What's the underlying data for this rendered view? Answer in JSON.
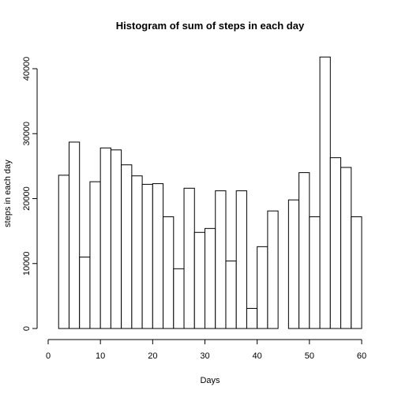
{
  "chart_data": {
    "type": "bar",
    "title": "Histogram of sum of steps in each day",
    "xlabel": "Days",
    "ylabel": "steps in each day",
    "xlim": [
      0,
      60
    ],
    "ylim": [
      0,
      42000
    ],
    "x_ticks": [
      0,
      10,
      20,
      30,
      40,
      50,
      60
    ],
    "y_ticks": [
      0,
      10000,
      20000,
      30000,
      40000
    ],
    "grid": false,
    "bin_width": 2,
    "bins": [
      {
        "x0": 2,
        "x1": 4,
        "value": 23600
      },
      {
        "x0": 4,
        "x1": 6,
        "value": 28700
      },
      {
        "x0": 6,
        "x1": 8,
        "value": 11000
      },
      {
        "x0": 8,
        "x1": 10,
        "value": 22600
      },
      {
        "x0": 10,
        "x1": 12,
        "value": 27800
      },
      {
        "x0": 12,
        "x1": 14,
        "value": 27500
      },
      {
        "x0": 14,
        "x1": 16,
        "value": 25200
      },
      {
        "x0": 16,
        "x1": 18,
        "value": 23500
      },
      {
        "x0": 18,
        "x1": 20,
        "value": 22200
      },
      {
        "x0": 20,
        "x1": 22,
        "value": 22300
      },
      {
        "x0": 22,
        "x1": 24,
        "value": 17200
      },
      {
        "x0": 24,
        "x1": 26,
        "value": 9200
      },
      {
        "x0": 26,
        "x1": 28,
        "value": 21600
      },
      {
        "x0": 28,
        "x1": 30,
        "value": 14800
      },
      {
        "x0": 30,
        "x1": 32,
        "value": 15400
      },
      {
        "x0": 32,
        "x1": 34,
        "value": 21200
      },
      {
        "x0": 34,
        "x1": 36,
        "value": 10400
      },
      {
        "x0": 36,
        "x1": 38,
        "value": 21200
      },
      {
        "x0": 38,
        "x1": 40,
        "value": 3100
      },
      {
        "x0": 40,
        "x1": 42,
        "value": 12600
      },
      {
        "x0": 42,
        "x1": 44,
        "value": 18100
      },
      {
        "x0": 44,
        "x1": 46,
        "value": 0
      },
      {
        "x0": 46,
        "x1": 48,
        "value": 19800
      },
      {
        "x0": 48,
        "x1": 50,
        "value": 24000
      },
      {
        "x0": 50,
        "x1": 52,
        "value": 17200
      },
      {
        "x0": 52,
        "x1": 54,
        "value": 41800
      },
      {
        "x0": 54,
        "x1": 56,
        "value": 26300
      },
      {
        "x0": 56,
        "x1": 58,
        "value": 24800
      },
      {
        "x0": 58,
        "x1": 60,
        "value": 17200
      }
    ]
  }
}
